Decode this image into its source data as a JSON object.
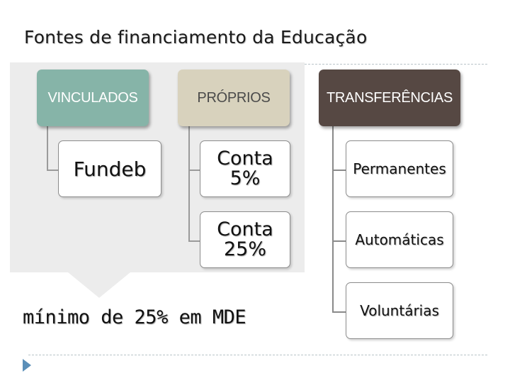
{
  "title": "Fontes de financiamento da Educação",
  "columns": {
    "vinculados": {
      "header": "VINCULADOS",
      "children": [
        "Fundeb"
      ]
    },
    "proprios": {
      "header": "PRÓPRIOS",
      "children": [
        "Conta\n5%",
        "Conta\n25%"
      ]
    },
    "transferencias": {
      "header": "TRANSFERÊNCIAS",
      "children": [
        "Permanentes",
        "Automáticas",
        "Voluntárias"
      ]
    }
  },
  "callout": "mínimo de 25% em MDE",
  "colors": {
    "vinculados": "#86b4a8",
    "proprios": "#d8d2bd",
    "transferencias": "#564843",
    "panel": "#ececec",
    "bullet": "#5b8fb8"
  },
  "icons": {
    "slide_bullet": "triangle-right-icon"
  }
}
